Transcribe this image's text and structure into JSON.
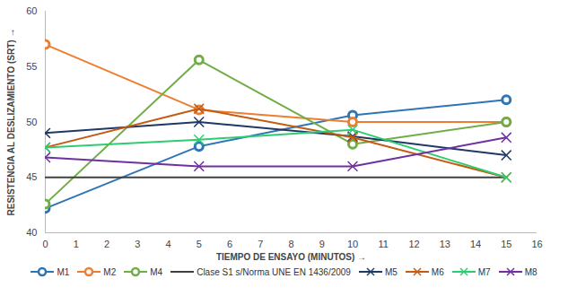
{
  "chart_data": {
    "type": "line",
    "x_label": "TIEMPO DE ENSAYO (MINUTOS)",
    "y_label": "RESISTENCIA AL DESLIZAMIENTO (SRT)",
    "x": [
      0,
      5,
      10,
      15
    ],
    "xlim": [
      0,
      16
    ],
    "xticks": [
      0,
      1,
      2,
      3,
      4,
      5,
      6,
      7,
      8,
      9,
      10,
      11,
      12,
      13,
      14,
      15,
      16
    ],
    "ylim": [
      40,
      60
    ],
    "yticks": [
      40,
      45,
      50,
      55,
      60
    ],
    "grid": false,
    "legend": "bottom",
    "series": [
      {
        "name": "M1",
        "color": "#2E75B6",
        "marker": "circle",
        "values": [
          42.2,
          47.8,
          50.6,
          52
        ]
      },
      {
        "name": "M2",
        "color": "#ED7D31",
        "marker": "circle",
        "values": [
          57,
          51.1,
          50,
          50
        ]
      },
      {
        "name": "M4",
        "color": "#70AD47",
        "marker": "circle",
        "values": [
          42.6,
          55.6,
          48,
          50
        ]
      },
      {
        "name": "Clase S1 s/Norma UNE EN 1436/2009",
        "color": "#404040",
        "marker": "none",
        "values": [
          45,
          45,
          45,
          45
        ]
      },
      {
        "name": "M5",
        "color": "#1F3864",
        "marker": "x",
        "values": [
          49,
          50,
          48.7,
          47
        ]
      },
      {
        "name": "M6",
        "color": "#C55A11",
        "marker": "x",
        "values": [
          47.7,
          51.2,
          48.6,
          45
        ]
      },
      {
        "name": "M7",
        "color": "#2ECC71",
        "marker": "x",
        "values": [
          47.7,
          48.4,
          49.3,
          45
        ]
      },
      {
        "name": "M8",
        "color": "#7030A0",
        "marker": "x",
        "values": [
          46.8,
          46,
          46,
          48.6
        ]
      }
    ]
  }
}
